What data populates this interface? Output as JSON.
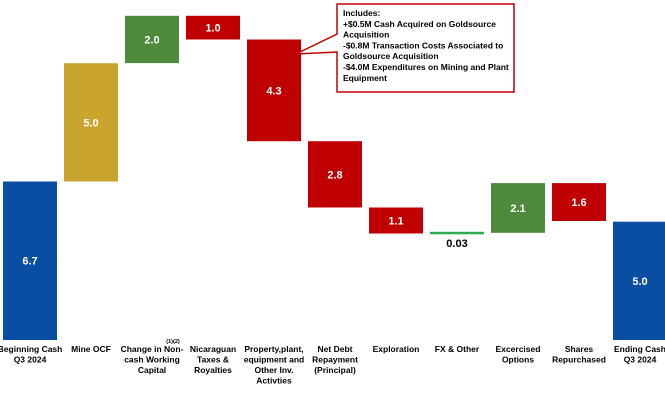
{
  "chart_data": {
    "type": "bar",
    "subtype": "waterfall",
    "categories": [
      [
        "Beginning Cash",
        "Q3 2024"
      ],
      [
        "Mine OCF"
      ],
      [
        "Change in Non-",
        "cash Working",
        "Capital"
      ],
      [
        "Nicaraguan",
        "Taxes &",
        "Royalties"
      ],
      [
        "Property,plant,",
        "equipment and",
        "Other Inv.",
        "Activties"
      ],
      [
        "Net Debt",
        "Repayment",
        "(Principal)"
      ],
      [
        "Exploration"
      ],
      [
        "FX & Other"
      ],
      [
        "Excercised",
        "Options"
      ],
      [
        "Shares",
        "Repurchased"
      ],
      [
        "Ending Cash",
        "Q3 2024"
      ]
    ],
    "category_superscripts": [
      "",
      "",
      "(1)(2)",
      "",
      "",
      "",
      "",
      "",
      "",
      "",
      ""
    ],
    "steps": [
      {
        "value": 6.7,
        "kind": "total",
        "label": "6.7"
      },
      {
        "value": 5.0,
        "kind": "increase",
        "label": "5.0"
      },
      {
        "value": 2.0,
        "kind": "increase",
        "label": "2.0"
      },
      {
        "value": -1.0,
        "kind": "decrease",
        "label": "1.0"
      },
      {
        "value": -4.3,
        "kind": "decrease",
        "label": "4.3"
      },
      {
        "value": -2.8,
        "kind": "decrease",
        "label": "2.8"
      },
      {
        "value": -1.1,
        "kind": "decrease",
        "label": "1.1"
      },
      {
        "value": 0.03,
        "kind": "other",
        "label": "0.03"
      },
      {
        "value": 2.1,
        "kind": "increase",
        "label": "2.1"
      },
      {
        "value": -1.6,
        "kind": "decrease",
        "label": "1.6"
      },
      {
        "value": 5.0,
        "kind": "total",
        "label": "5.0"
      }
    ],
    "colors": {
      "total": "#0a4ea3",
      "mine_ocf": "#c9a52e",
      "increase": "#4f8a3c",
      "decrease": "#c00000",
      "other": "#2eaa52",
      "label_light": "#ffffff",
      "label_dark": "#000000"
    },
    "ylim": [
      0,
      14.2
    ],
    "grid": false,
    "legend": "none",
    "annotation": {
      "lines": [
        "Includes:",
        "+$0.5M Cash Acquired on Goldsource",
        "Acquisition",
        "-$0.8M Transaction Costs Associated to",
        "Goldsource Acquisition",
        "-$4.0M Expenditures on Mining and Plant",
        "Equipment"
      ],
      "border_color": "#c00000",
      "points_to_category_index": 4
    }
  }
}
